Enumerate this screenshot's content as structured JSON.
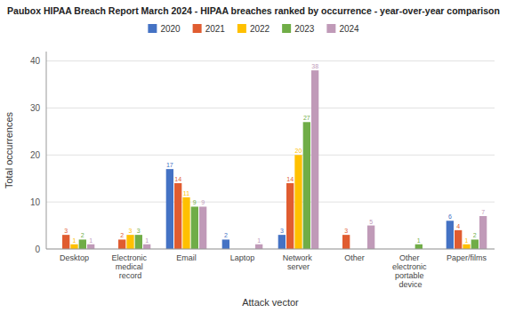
{
  "chart_data": {
    "type": "bar",
    "title": "Paubox HIPAA Breach Report March 2024 - HIPAA breaches ranked by occurrence - year-over-year comparison",
    "x_label": "Attack vector",
    "y_label": "Total occurrences",
    "categories": [
      "Desktop",
      "Electronic medical record",
      "Email",
      "Laptop",
      "Network server",
      "Other",
      "Other electronic portable device",
      "Paper/films"
    ],
    "series": [
      {
        "name": "2020",
        "color": "#4472c4",
        "values": [
          0,
          0,
          17,
          2,
          3,
          0,
          0,
          6
        ]
      },
      {
        "name": "2021",
        "color": "#e05c30",
        "values": [
          3,
          2,
          14,
          0,
          14,
          3,
          0,
          4
        ]
      },
      {
        "name": "2022",
        "color": "#ffc000",
        "values": [
          1,
          3,
          11,
          0,
          20,
          0,
          0,
          1
        ]
      },
      {
        "name": "2023",
        "color": "#70ad47",
        "values": [
          2,
          3,
          9,
          0,
          27,
          0,
          1,
          2
        ]
      },
      {
        "name": "2024",
        "color": "#c09ab8",
        "values": [
          1,
          1,
          9,
          1,
          38,
          5,
          0,
          7
        ]
      }
    ],
    "ylim": [
      0,
      42
    ],
    "yticks": [
      0,
      10,
      20,
      30,
      40
    ],
    "grid": true,
    "legend": "top",
    "data_labels": true
  }
}
